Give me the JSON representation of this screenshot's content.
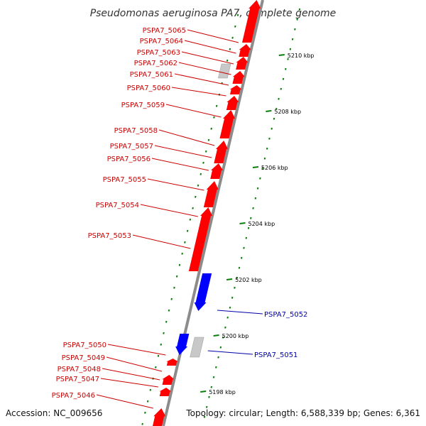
{
  "title": "Pseudomonas aeruginosa PA7, complete genome",
  "footer": {
    "accession": "Accession: NC_009656",
    "summary": "Topology: circular; Length: 6,588,339 bp; Genes: 6,361"
  },
  "colors": {
    "forward_strand": "#ff0000",
    "reverse_strand": "#0000ff",
    "pseudo_or_rna": "#c8c8c8",
    "backbone": "#8c8c8c",
    "gc_ticks": "#0a7d0a",
    "label_forward": "#cc0000",
    "label_reverse": "#0000aa"
  },
  "scale_labels": [
    "5198 kbp",
    "5200 kbp",
    "5202 kbp",
    "5204 kbp",
    "5206 kbp",
    "5208 kbp",
    "5210 kbp"
  ],
  "gene_labels_forward": [
    "PSPA7_5065",
    "PSPA7_5064",
    "PSPA7_5063",
    "PSPA7_5062",
    "PSPA7_5061",
    "PSPA7_5060",
    "PSPA7_5059",
    "PSPA7_5058",
    "PSPA7_5057",
    "PSPA7_5056",
    "PSPA7_5055",
    "PSPA7_5054",
    "PSPA7_5053",
    "PSPA7_5050",
    "PSPA7_5049",
    "PSPA7_5048",
    "PSPA7_5047",
    "PSPA7_5046"
  ],
  "gene_labels_reverse": [
    "PSPA7_5052",
    "PSPA7_5051"
  ]
}
